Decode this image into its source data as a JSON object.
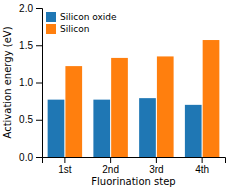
{
  "chart_data": {
    "type": "bar",
    "categories": [
      "1st",
      "2nd",
      "3rd",
      "4th"
    ],
    "series": [
      {
        "name": "Silicon oxide",
        "values": [
          0.77,
          0.77,
          0.79,
          0.7
        ]
      },
      {
        "name": "Silicon",
        "values": [
          1.22,
          1.33,
          1.35,
          1.57
        ]
      }
    ],
    "xlabel": "Fluorination step",
    "ylabel": "Activation energy (eV)",
    "ylim": [
      0,
      2.0
    ],
    "yticks": [
      {
        "value": 0,
        "label": "0.0"
      },
      0.5,
      {
        "value": 1,
        "label": "1.0"
      },
      1.5,
      {
        "value": 2,
        "label": "2.0"
      }
    ],
    "legend": "upper left"
  }
}
